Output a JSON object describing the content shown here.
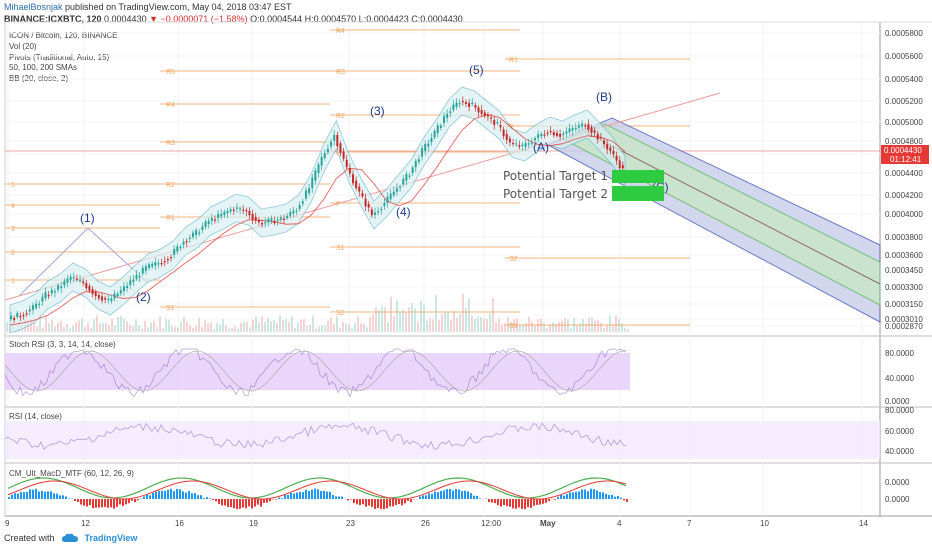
{
  "header": {
    "author": "MihaelBosnjak",
    "published": "published on TradingView.com, May 04, 2018 03:47 EST",
    "symbol": "BINANCE:ICXBTC, 120",
    "last": "0.0004430",
    "change": "▼ −0.0000071 (−1.58%)",
    "ohlc": "O:0.0004544 H:0.0004570 L:0.0004423 C:0.0004430"
  },
  "legend": [
    "ICON / Bitcoin, 120, BINANCE",
    "Vol (20)",
    "Pivots (Traditional, Auto, 15)",
    "50, 100, 200 SMAs",
    "BB (20, close, 2)"
  ],
  "panes": {
    "stoch": "Stoch RSI (3, 3, 14, 14, close)",
    "rsi": "RSI (14, close)",
    "macd": "CM_Ult_MacD_MTF (60, 12, 26, 9)"
  },
  "footer": {
    "created": "Created with",
    "brand": "TradingView"
  },
  "colors": {
    "up": "#26a69a",
    "down": "#c62828",
    "pivot": "#f2a45c",
    "fork_outer": "#3f51b5",
    "fork_inner": "#66bb6a",
    "target": "#2ecc40",
    "bb": "#5fb3c6",
    "stoch_band": "#e1c4fa",
    "price_tag": "#e53935"
  },
  "chart_data": {
    "type": "candlestick",
    "price_axis": [
      "0.0005800",
      "0.0005600",
      "0.0005400",
      "0.0005200",
      "0.0005000",
      "0.0004800",
      "0.0004600",
      "0.0004400",
      "0.0004200",
      "0.0004000",
      "0.0003800",
      "0.0003600",
      "0.0003450",
      "0.0003300",
      "0.0003150",
      "0.0003010",
      "0.0002870"
    ],
    "current_price": "0.0004430",
    "countdown": "01:12:41",
    "date_axis": [
      "9",
      "12",
      "16",
      "19",
      "23",
      "26",
      "12:00",
      "May",
      "4",
      "7",
      "10",
      "14"
    ],
    "waves": [
      "(1)",
      "(2)",
      "(3)",
      "(4)",
      "(5)",
      "(A)",
      "(B)",
      "(C)"
    ],
    "pivots_left": [
      "R4",
      "R5",
      "R4",
      "R3",
      "R1",
      "R2",
      "R1",
      "S1",
      "R1",
      "S1",
      "S2",
      "S3",
      "5",
      "4",
      "3",
      "2",
      "1",
      "P",
      "P"
    ],
    "pivots_right": [
      "R1",
      "S2",
      "S3",
      "P"
    ],
    "targets": [
      "Potential Target 1",
      "Potential Target 2"
    ],
    "stoch_axis": [
      "80.0000",
      "40.0000",
      "0.0000"
    ],
    "rsi_axis": [
      "80.0000",
      "60.0000",
      "40.0000"
    ],
    "macd_axis": [
      "0.0000",
      "0.0000"
    ],
    "close_path": [
      0.000294,
      0.000298,
      0.000305,
      0.000318,
      0.000325,
      0.000336,
      0.00033,
      0.000318,
      0.000312,
      0.000322,
      0.000334,
      0.000345,
      0.00035,
      0.000358,
      0.000372,
      0.00038,
      0.000392,
      0.000398,
      0.000405,
      0.000402,
      0.00039,
      0.000392,
      0.000395,
      0.000404,
      0.000425,
      0.000455,
      0.000478,
      0.000445,
      0.00042,
      0.000398,
      0.00041,
      0.000425,
      0.00044,
      0.000462,
      0.00048,
      0.0005,
      0.000512,
      0.000508,
      0.000498,
      0.000488,
      0.00047,
      0.000466,
      0.000475,
      0.000482,
      0.000478,
      0.000484,
      0.000489,
      0.000476,
      0.000462,
      0.000443
    ]
  }
}
